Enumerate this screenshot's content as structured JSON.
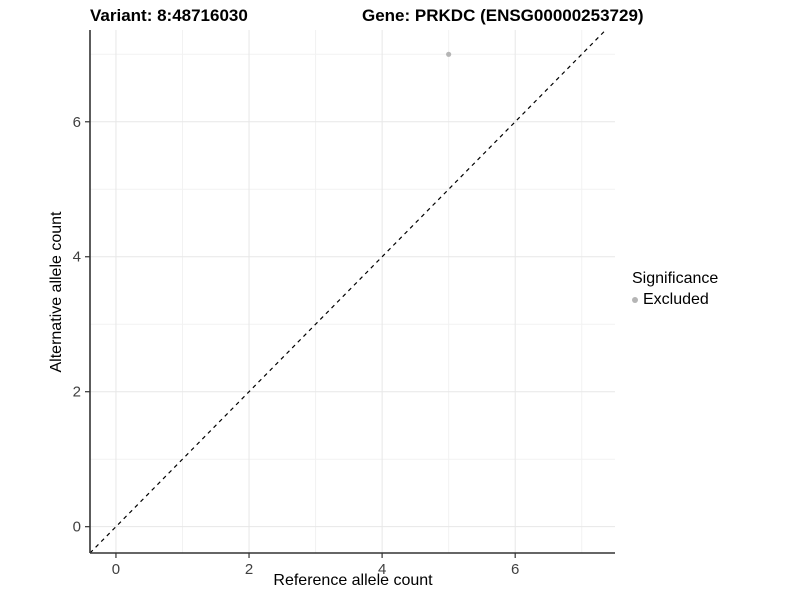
{
  "header": {
    "variant_title": "Variant: 8:48716030",
    "gene_title": "Gene: PRKDC (ENSG00000253729)"
  },
  "chart_data": {
    "type": "scatter",
    "xlabel": "Reference allele count",
    "ylabel": "Alternative allele count",
    "x_ticks": [
      0,
      2,
      4,
      6
    ],
    "y_ticks": [
      0,
      2,
      4,
      6
    ],
    "x_minor_ticks": [
      1,
      3,
      5,
      7
    ],
    "y_minor_ticks": [
      1,
      3,
      5,
      7
    ],
    "xlim": [
      -0.39,
      7.5
    ],
    "ylim": [
      -0.39,
      7.36
    ],
    "grid": "on",
    "series": [
      {
        "name": "Excluded",
        "color": "#b5b5b5",
        "points": [
          {
            "x": 5,
            "y": 7
          }
        ]
      }
    ],
    "reference_line": {
      "equation": "y = x",
      "style": "dashed",
      "color": "#000000"
    },
    "legend": {
      "title": "Significance",
      "position": "right",
      "items": [
        {
          "label": "Excluded",
          "color": "#b5b5b5",
          "marker": "circle"
        }
      ]
    }
  },
  "colors": {
    "background": "#ffffff",
    "grid_major": "#e7e7e7",
    "grid_minor": "#f2f2f2",
    "axis_line": "#333333",
    "tick_label": "#404040",
    "tick_mark": "#333333"
  }
}
